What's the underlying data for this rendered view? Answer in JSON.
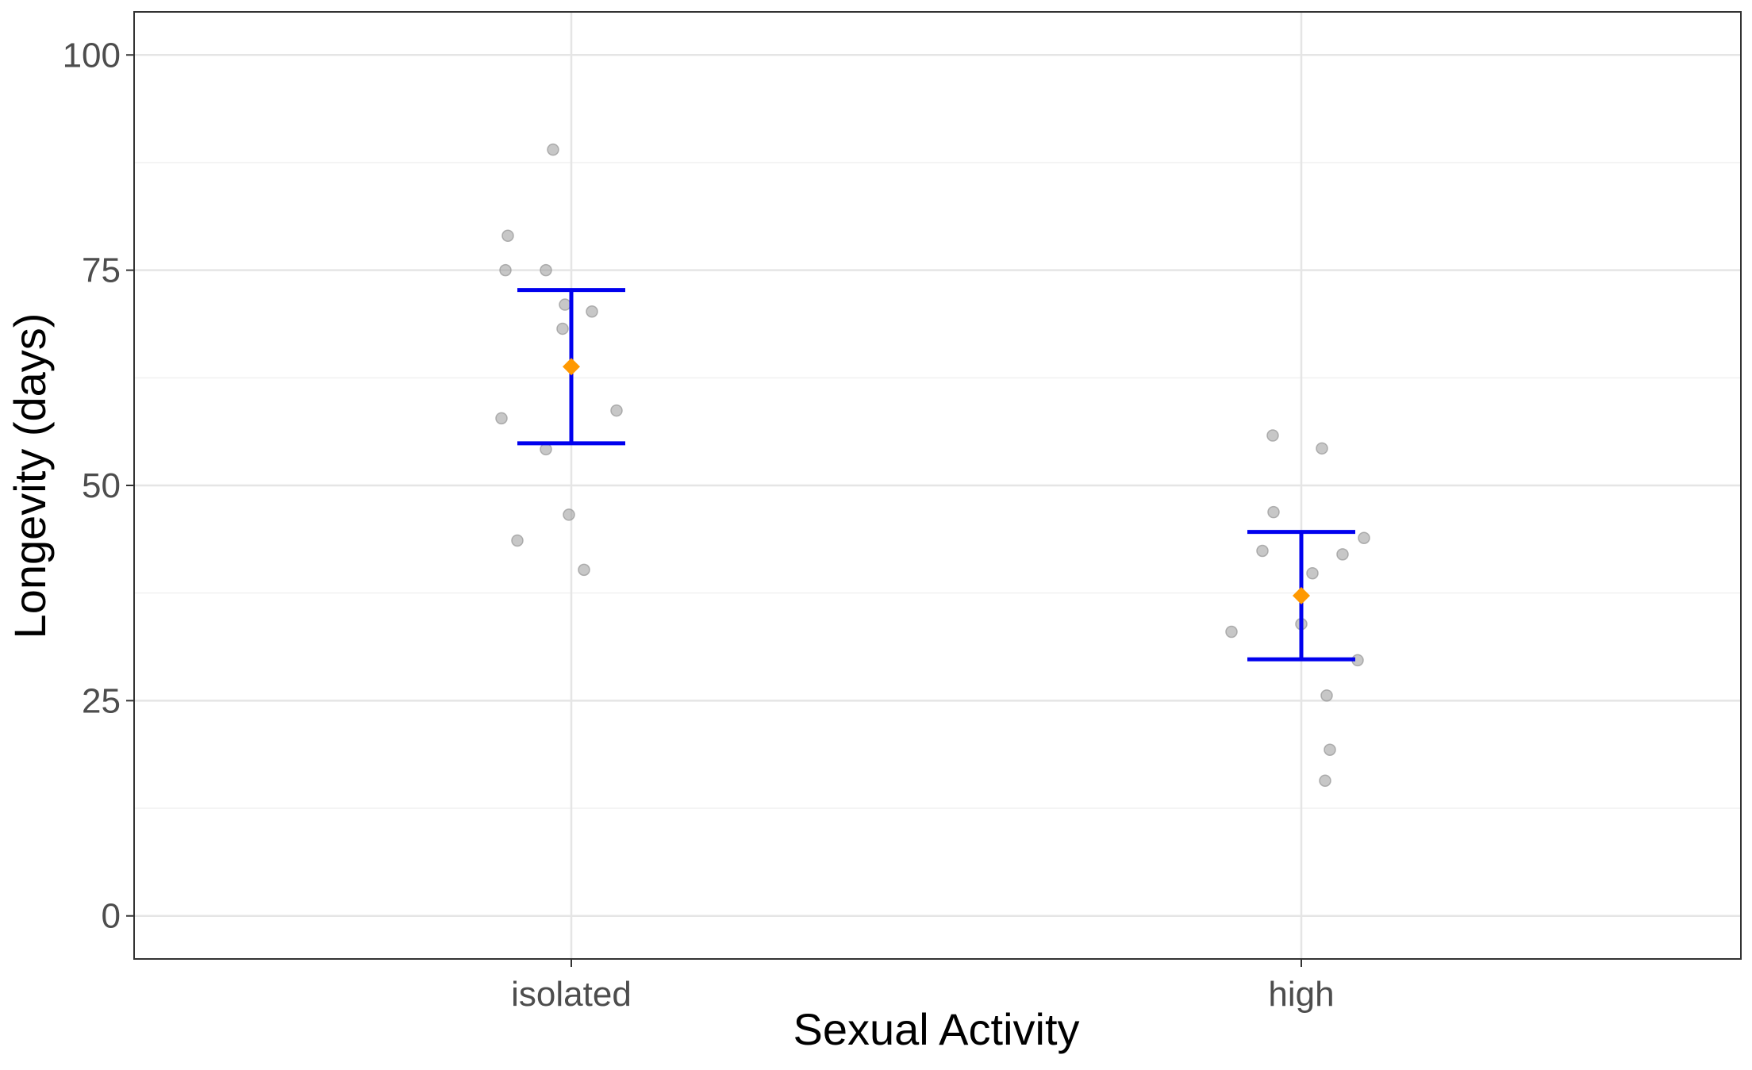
{
  "chart_data": {
    "type": "scatter",
    "xlabel": "Sexual Activity",
    "ylabel": "Longevity (days)",
    "categories": [
      "isolated",
      "high"
    ],
    "ylim": [
      -5,
      105
    ],
    "yticks": [
      0,
      25,
      50,
      75,
      100
    ],
    "y_minor_gridlines": [
      12.5,
      37.5,
      62.5,
      87.5
    ],
    "grid": true,
    "legend": "none",
    "points": [
      {
        "category": "isolated",
        "values": [
          89,
          79,
          75,
          75,
          71,
          70.2,
          68.2,
          58.7,
          57.8,
          54.2,
          46.6,
          43.6,
          40.2
        ]
      },
      {
        "category": "high",
        "values": [
          55.8,
          54.3,
          46.9,
          43.9,
          42.4,
          42,
          39.8,
          33.9,
          33,
          29.7,
          25.6,
          19.3,
          15.7
        ]
      }
    ],
    "summary": [
      {
        "category": "isolated",
        "mean": 63.8,
        "lower": 54.9,
        "upper": 72.7
      },
      {
        "category": "high",
        "mean": 37.2,
        "lower": 29.8,
        "upper": 44.6
      }
    ],
    "colors": {
      "points": "#999999",
      "errorbar": "#0000ee",
      "mean": "#ff9900",
      "grid_major": "#e5e5e5",
      "grid_minor": "#f0f0f0",
      "panel_border": "#333333",
      "tick_label": "#4d4d4d"
    }
  }
}
